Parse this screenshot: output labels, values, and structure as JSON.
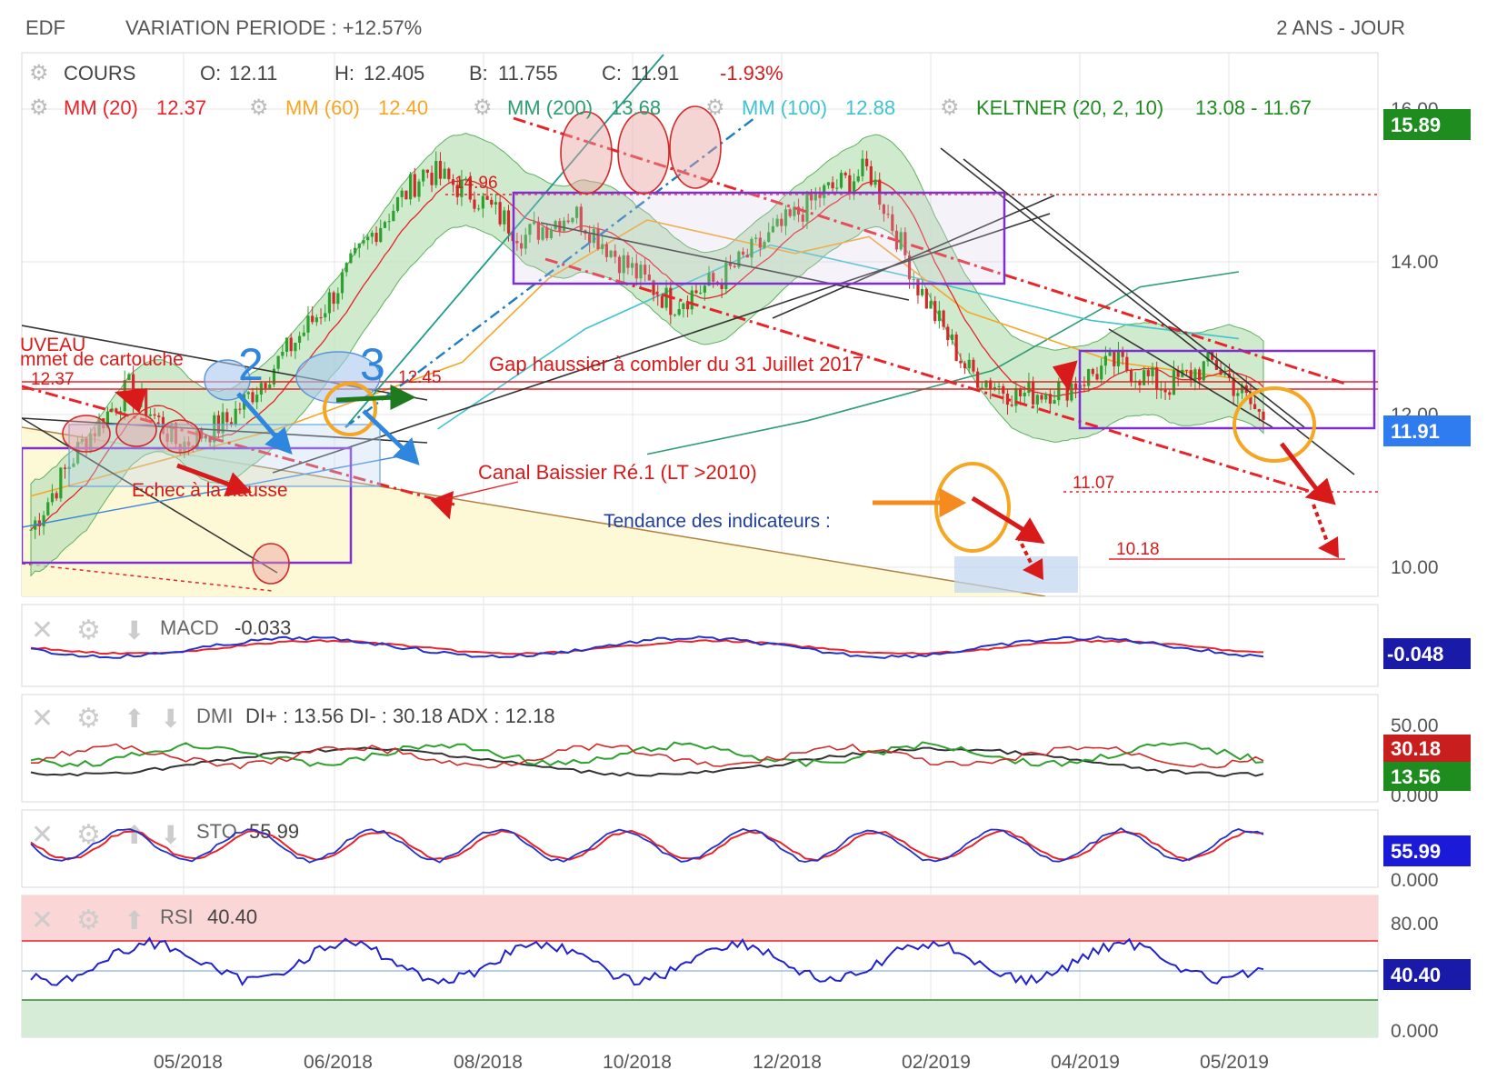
{
  "header": {
    "symbol": "EDF",
    "variation": "VARIATION PERIODE : +12.57%",
    "period": "2 ANS - JOUR"
  },
  "price_legend": {
    "cours": "COURS",
    "o": "O:",
    "o_val": "12.11",
    "h": "H:",
    "h_val": "12.405",
    "b": "B:",
    "b_val": "11.755",
    "c": "C:",
    "c_val": "11.91",
    "chg": "-1.93%",
    "mm20": "MM (20)",
    "mm20_val": "12.37",
    "mm60": "MM (60)",
    "mm60_val": "12.40",
    "mm200": "MM (200)",
    "mm200_val": "13.68",
    "mm100": "MM (100)",
    "mm100_val": "12.88",
    "kelt": "KELTNER (20, 2, 10)",
    "kelt_val": "13.08 - 11.67"
  },
  "colors": {
    "mm20": "#e8232a",
    "mm60": "#f5a623",
    "mm200": "#2e9c72",
    "mm100": "#3fc4cf",
    "kelt": "#1f8c1f",
    "candle_up": "#2ea02e",
    "candle_dn": "#d02a2a",
    "rsi_line": "#2222cc",
    "macd_line": "#2233cc"
  },
  "annotations": {
    "level_1496": "14.96",
    "level_1245": "12.45",
    "level_1237": "12.37",
    "level_1107": "11.07",
    "level_1018": "10.18",
    "gap": "Gap haussier à combler du 31 Juillet 2017",
    "canal": "Canal Baissier Ré.1 (LT >2010)",
    "tendance": "Tendance des indicateurs :",
    "echec": "Echec à la hausse",
    "sommet": "mmet de cartouche",
    "nouveau": "UVEAU",
    "num2": "2",
    "num3": "3"
  },
  "badges": {
    "top": "15.89",
    "last": "11.91",
    "macd": "-0.048",
    "dmi_minus": "30.18",
    "dmi_plus": "13.56",
    "sto": "55.99",
    "rsi": "40.40"
  },
  "panels": {
    "macd": {
      "label": "MACD",
      "value": "-0.033"
    },
    "dmi": {
      "label": "DMI",
      "value": "DI+ : 13.56 DI- : 30.18 ADX : 12.18",
      "ticks": [
        "50.00",
        "0.000"
      ]
    },
    "sto": {
      "label": "STO",
      "value": "55.99",
      "ticks": [
        "0.000"
      ]
    },
    "rsi": {
      "label": "RSI",
      "value": "40.40",
      "ticks": [
        "80.00",
        "0.000"
      ]
    }
  },
  "chart_data": {
    "type": "candlestick",
    "y_ticks": [
      "16.00",
      "14.00",
      "12.00",
      "10.00"
    ],
    "ylim": [
      9.8,
      16.3
    ],
    "x_ticks": [
      "05/2018",
      "06/2018",
      "08/2018",
      "10/2018",
      "12/2018",
      "02/2019",
      "04/2019",
      "05/2019"
    ],
    "close_points": [
      [
        "03/2018",
        10.6
      ],
      [
        "04/2018",
        11.6
      ],
      [
        "05/2018",
        12.3
      ],
      [
        "05/2018",
        11.6
      ],
      [
        "06/2018",
        11.9
      ],
      [
        "07/2018",
        12.6
      ],
      [
        "08/2018",
        13.3
      ],
      [
        "08/2018",
        14.2
      ],
      [
        "09/2018",
        14.9
      ],
      [
        "10/2018",
        14.6
      ],
      [
        "10/2018",
        14.1
      ],
      [
        "11/2018",
        14.4
      ],
      [
        "11/2018",
        13.8
      ],
      [
        "12/2018",
        13.3
      ],
      [
        "12/2018",
        13.6
      ],
      [
        "01/2019",
        14.1
      ],
      [
        "02/2019",
        14.6
      ],
      [
        "02/2019",
        14.9
      ],
      [
        "02/2019",
        13.5
      ],
      [
        "03/2019",
        12.5
      ],
      [
        "03/2019",
        12.2
      ],
      [
        "04/2019",
        12.3
      ],
      [
        "04/2019",
        12.6
      ],
      [
        "05/2019",
        12.3
      ],
      [
        "05/2019",
        12.6
      ],
      [
        "05/2019",
        11.91
      ]
    ],
    "mm200": [
      [
        0.5,
        11.5
      ],
      [
        0.63,
        11.9
      ],
      [
        0.78,
        12.5
      ],
      [
        0.9,
        13.5
      ],
      [
        0.98,
        13.68
      ]
    ],
    "mm100": [
      [
        0.33,
        11.8
      ],
      [
        0.45,
        13.0
      ],
      [
        0.6,
        14.0
      ],
      [
        0.72,
        13.6
      ],
      [
        0.86,
        13.1
      ],
      [
        0.98,
        12.88
      ]
    ],
    "mm60": [
      [
        0.0,
        11.0
      ],
      [
        0.2,
        11.8
      ],
      [
        0.35,
        12.6
      ],
      [
        0.42,
        13.6
      ],
      [
        0.5,
        14.3
      ],
      [
        0.62,
        13.9
      ],
      [
        0.68,
        14.1
      ],
      [
        0.76,
        13.2
      ],
      [
        0.88,
        12.6
      ],
      [
        0.98,
        12.4
      ]
    ],
    "rsi_levels": [
      80,
      50,
      20
    ]
  }
}
